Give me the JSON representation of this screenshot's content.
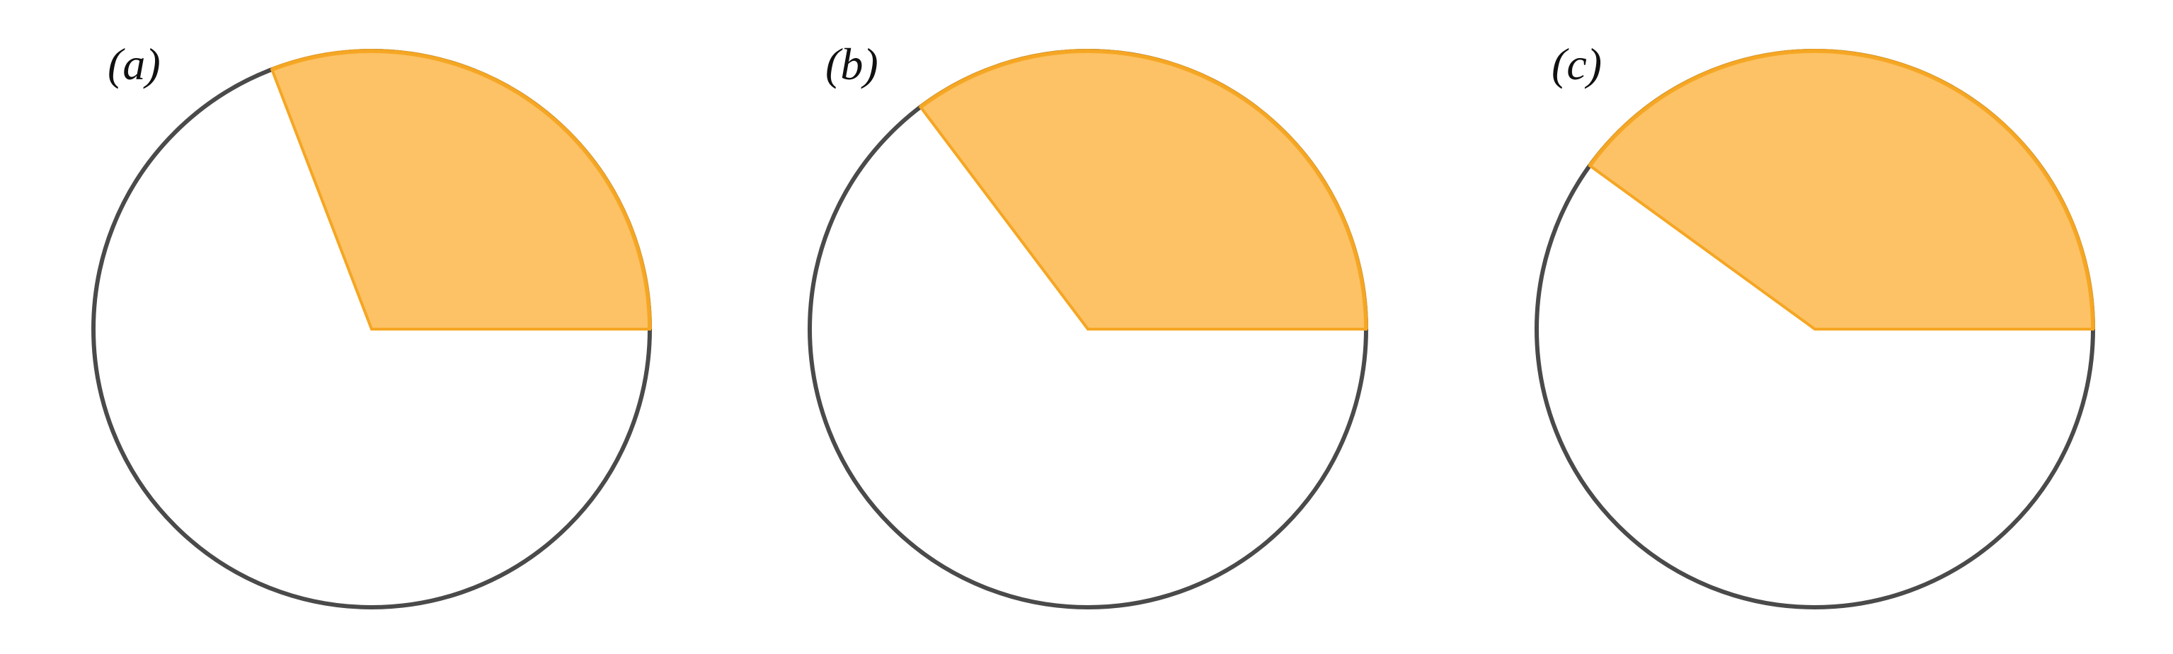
{
  "panels": [
    {
      "label": "(a)",
      "sector_start_deg": 0,
      "sector_end_deg": 111
    },
    {
      "label": "(b)",
      "sector_start_deg": 0,
      "sector_end_deg": 127
    },
    {
      "label": "(c)",
      "sector_start_deg": 0,
      "sector_end_deg": 144
    }
  ],
  "colors": {
    "sector_fill": "#fdc265",
    "sector_stroke": "#f5a623",
    "circle_stroke": "#4a4a4a",
    "background": "#ffffff"
  }
}
